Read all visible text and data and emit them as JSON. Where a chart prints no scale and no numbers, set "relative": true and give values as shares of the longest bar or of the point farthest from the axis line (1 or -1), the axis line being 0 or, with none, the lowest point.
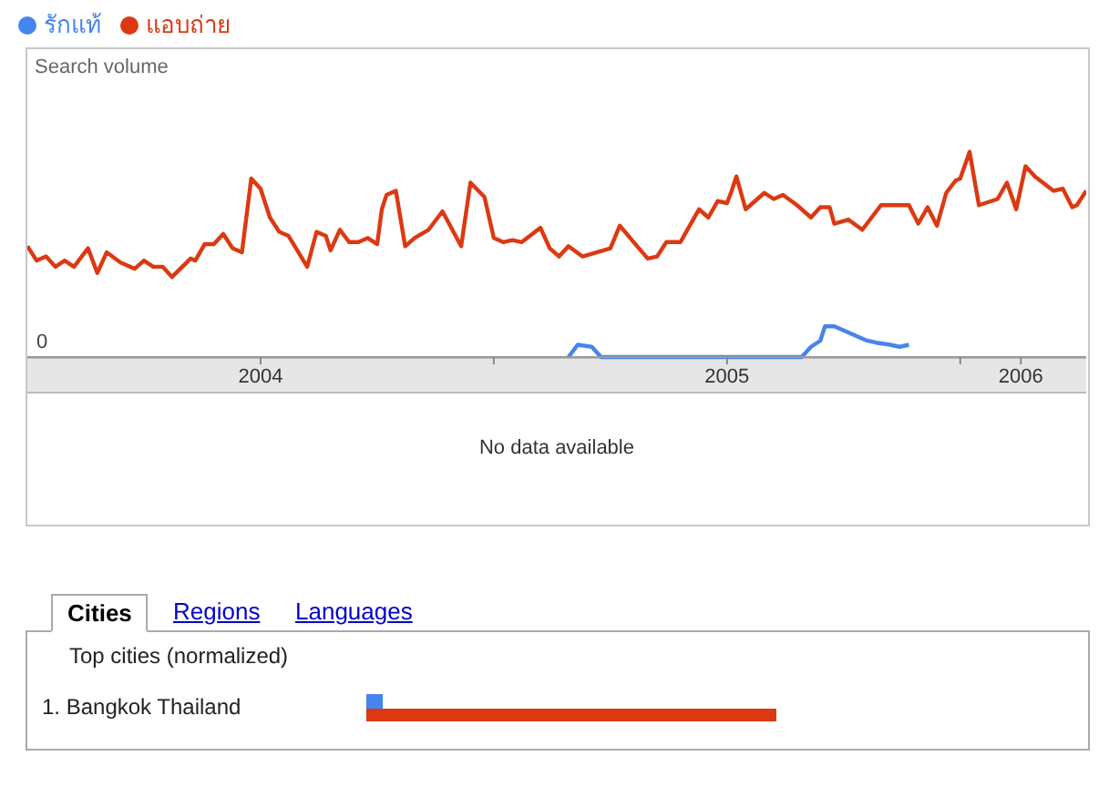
{
  "chart_data": [
    {
      "type": "line",
      "relative": true,
      "ylabel": "Search volume",
      "legend": "top left",
      "marker": "none",
      "xlim": [
        2004,
        2006.27
      ],
      "xticks": [
        {
          "value": 2004.5,
          "label": "2004"
        },
        {
          "value": 2005,
          "label": null
        },
        {
          "value": 2005.5,
          "label": "2005"
        },
        {
          "value": 2006,
          "label": null
        },
        {
          "value": 2006.13,
          "label": "2006"
        }
      ],
      "annotations": [
        "0",
        "No data available"
      ],
      "series": [
        {
          "name": "รักแท้",
          "color": "#4684ee",
          "x": [
            2005.16,
            2005.18,
            2005.21,
            2005.23,
            2005.66,
            2005.68,
            2005.7,
            2005.71,
            2005.73,
            2005.76,
            2005.77,
            2005.8,
            2005.82,
            2005.85,
            2005.87,
            2005.89
          ],
          "values": [
            0,
            0.06,
            0.05,
            0,
            0,
            0.05,
            0.08,
            0.15,
            0.15,
            0.12,
            0.11,
            0.08,
            0.07,
            0.06,
            0.05,
            0.06
          ]
        },
        {
          "name": "แอบถ่าย",
          "color": "#dc3912",
          "x": [
            2004.0,
            2004.02,
            2004.04,
            2004.06,
            2004.08,
            2004.1,
            2004.13,
            2004.15,
            2004.17,
            2004.2,
            2004.23,
            2004.25,
            2004.27,
            2004.29,
            2004.31,
            2004.35,
            2004.36,
            2004.38,
            2004.4,
            2004.42,
            2004.44,
            2004.46,
            2004.48,
            2004.5,
            2004.52,
            2004.54,
            2004.56,
            2004.6,
            2004.62,
            2004.64,
            2004.65,
            2004.67,
            2004.69,
            2004.71,
            2004.73,
            2004.75,
            2004.76,
            2004.77,
            2004.79,
            2004.81,
            2004.83,
            2004.86,
            2004.89,
            2004.93,
            2004.95,
            2004.98,
            2005.0,
            2005.02,
            2005.04,
            2005.06,
            2005.1,
            2005.12,
            2005.14,
            2005.16,
            2005.19,
            2005.22,
            2005.25,
            2005.27,
            2005.3,
            2005.33,
            2005.35,
            2005.37,
            2005.4,
            2005.44,
            2005.46,
            2005.48,
            2005.5,
            2005.51,
            2005.52,
            2005.54,
            2005.58,
            2005.6,
            2005.62,
            2005.65,
            2005.68,
            2005.7,
            2005.72,
            2005.73,
            2005.76,
            2005.79,
            2005.83,
            2005.89,
            2005.91,
            2005.93,
            2005.95,
            2005.97,
            2005.99,
            2006.0,
            2006.02,
            2006.04,
            2006.08,
            2006.1,
            2006.12,
            2006.14,
            2006.16,
            2006.2,
            2006.22,
            2006.24,
            2006.25,
            2006.27
          ],
          "values": [
            0.54,
            0.47,
            0.49,
            0.44,
            0.47,
            0.44,
            0.53,
            0.41,
            0.51,
            0.46,
            0.43,
            0.47,
            0.44,
            0.44,
            0.39,
            0.48,
            0.47,
            0.55,
            0.55,
            0.6,
            0.53,
            0.51,
            0.87,
            0.82,
            0.68,
            0.61,
            0.59,
            0.44,
            0.61,
            0.59,
            0.52,
            0.62,
            0.56,
            0.56,
            0.58,
            0.55,
            0.72,
            0.79,
            0.81,
            0.54,
            0.58,
            0.62,
            0.71,
            0.54,
            0.85,
            0.78,
            0.58,
            0.56,
            0.57,
            0.56,
            0.63,
            0.53,
            0.49,
            0.54,
            0.49,
            0.51,
            0.53,
            0.64,
            0.56,
            0.48,
            0.49,
            0.56,
            0.56,
            0.72,
            0.68,
            0.76,
            0.75,
            0.81,
            0.88,
            0.72,
            0.8,
            0.77,
            0.79,
            0.74,
            0.68,
            0.73,
            0.73,
            0.65,
            0.67,
            0.62,
            0.74,
            0.74,
            0.65,
            0.73,
            0.64,
            0.8,
            0.86,
            0.87,
            1.0,
            0.74,
            0.77,
            0.85,
            0.72,
            0.93,
            0.88,
            0.81,
            0.82,
            0.73,
            0.74,
            0.81
          ]
        }
      ]
    },
    {
      "type": "bar",
      "orientation": "horizontal",
      "relative": true,
      "title": "Top cities (normalized)",
      "annotations": [
        "Cities",
        "Regions",
        "Languages"
      ],
      "categories": [
        "1. Bangkok Thailand"
      ],
      "series": [
        {
          "color": "#4684ee",
          "values": [
            0.04
          ]
        },
        {
          "color": "#dc3912",
          "values": [
            1
          ]
        }
      ]
    }
  ]
}
